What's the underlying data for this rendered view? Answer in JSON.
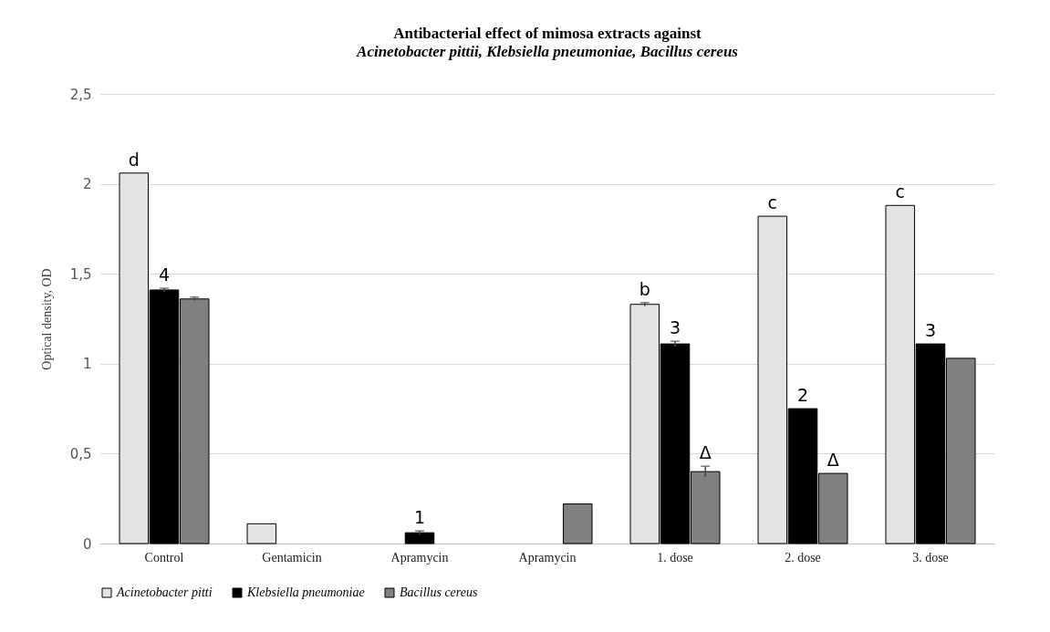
{
  "chart_data": {
    "type": "bar",
    "title": "Antibacterial effect of mimosa extracts against",
    "subtitle": "Acinetobacter pittii, Klebsiella pneumoniae, Bacillus cereus",
    "ylabel": "Optical density, OD",
    "categories": [
      "Control",
      "Gentamicin",
      "Apramycin",
      "Apramycin",
      "1. dose",
      "2. dose",
      "3. dose"
    ],
    "series": [
      {
        "name": "Acinetobacter pitti",
        "color": "#e3e3e3",
        "values": [
          2.06,
          0.11,
          null,
          null,
          1.33,
          1.82,
          1.88
        ],
        "errors": [
          null,
          null,
          null,
          null,
          0.01,
          null,
          null
        ],
        "value_labels": [
          "d",
          null,
          null,
          null,
          "b",
          "c",
          "c"
        ]
      },
      {
        "name": "Klebsiella pneumoniae",
        "color": "#000000",
        "values": [
          1.41,
          null,
          0.06,
          null,
          1.11,
          0.75,
          1.11
        ],
        "errors": [
          0.01,
          null,
          0.01,
          null,
          0.015,
          null,
          null
        ]
      },
      {
        "name": "Bacillus cereus",
        "color": "#808080",
        "values": [
          1.36,
          null,
          null,
          0.22,
          0.4,
          0.39,
          1.03
        ],
        "errors": [
          0.01,
          null,
          null,
          null,
          0.03,
          null,
          null
        ],
        "value_labels": [
          null,
          null,
          null,
          null,
          "Δ",
          "Δ",
          null
        ]
      }
    ],
    "ylim": [
      0,
      2.5
    ],
    "yticks": [
      0,
      {
        "value": 0.5,
        "label": "0,5"
      },
      1,
      {
        "value": 1.5,
        "label": "1,5"
      },
      2,
      {
        "value": 2.5,
        "label": "2,5"
      }
    ],
    "grid": "y",
    "legend": "bottom",
    "annotations": [
      {
        "text": "4",
        "x": "Control",
        "y": 1.41
      },
      {
        "text": "1",
        "x": "Apramycin",
        "y": 0.06
      },
      {
        "text": "3",
        "x": "1. dose",
        "y": 1.11
      },
      {
        "text": "2",
        "x": "2. dose",
        "y": 0.75
      },
      {
        "text": "3",
        "x": "3. dose",
        "y": 1.11
      }
    ]
  }
}
